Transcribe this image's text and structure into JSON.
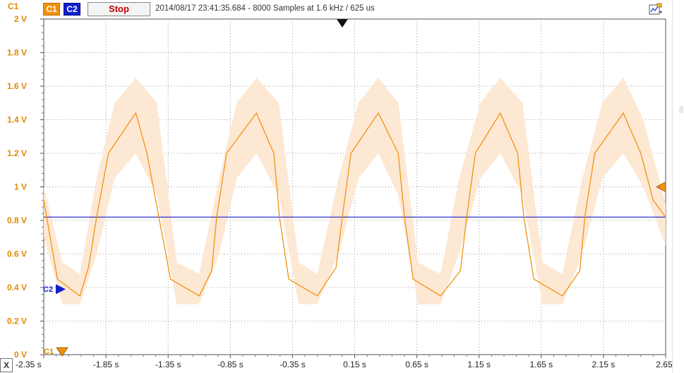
{
  "toolbar": {
    "c1_label": "C1",
    "c2_label": "C2",
    "stop_label": "Stop",
    "status": "2014/08/17 23:41:35.684 - 8000 Samples at 1.6 kHz / 625 us",
    "settings_icon": "chart-settings-icon"
  },
  "sidebar": {
    "channel_title": "C1"
  },
  "x_corner_label": "X",
  "markers": {
    "c2_label": "C2",
    "c1_label": "C1"
  },
  "colors": {
    "c1": "#f29111",
    "c1_envelope": "#fde8d4",
    "c2": "#1a1acc",
    "axis_text": "#e08a00",
    "grid": "#9a9a9a"
  },
  "chart_data": {
    "type": "line",
    "title": "",
    "xlabel": "",
    "ylabel": "",
    "xlim": [
      -2.35,
      2.65
    ],
    "ylim": [
      0,
      2
    ],
    "x_ticks": [
      "-2.35 s",
      "-1.85 s",
      "-1.35 s",
      "-0.85 s",
      "-0.35 s",
      "0.15 s",
      "0.65 s",
      "1.15 s",
      "1.65 s",
      "2.15 s",
      "2.65 s"
    ],
    "y_ticks": [
      "0 V",
      "0.2 V",
      "0.4 V",
      "0.6 V",
      "0.8 V",
      "1 V",
      "1.2 V",
      "1.4 V",
      "1.6 V",
      "1.8 V",
      "2 V"
    ],
    "grid": true,
    "series": [
      {
        "name": "C1",
        "x": [
          -2.35,
          -2.24,
          -2.06,
          -1.99,
          -1.925,
          -1.83,
          -1.61,
          -1.52,
          -1.425,
          -1.33,
          -1.1,
          -1.0,
          -0.96,
          -0.88,
          -0.64,
          -0.5,
          -0.455,
          -0.38,
          -0.15,
          0.0,
          0.05,
          0.12,
          0.34,
          0.5,
          0.55,
          0.62,
          0.84,
          1.0,
          1.05,
          1.12,
          1.32,
          1.46,
          1.51,
          1.59,
          1.82,
          1.96,
          2.0,
          2.08,
          2.31,
          2.45,
          2.5,
          2.55,
          2.65
        ],
        "values": [
          0.92,
          0.45,
          0.35,
          0.52,
          0.82,
          1.2,
          1.44,
          1.2,
          0.82,
          0.45,
          0.35,
          0.5,
          0.82,
          1.2,
          1.44,
          1.2,
          0.82,
          0.45,
          0.35,
          0.52,
          0.82,
          1.2,
          1.44,
          1.2,
          0.82,
          0.45,
          0.35,
          0.5,
          0.82,
          1.2,
          1.44,
          1.2,
          0.82,
          0.45,
          0.35,
          0.5,
          0.82,
          1.2,
          1.44,
          1.2,
          1.06,
          0.92,
          0.82
        ]
      },
      {
        "name": "C2",
        "x": [
          -2.35,
          2.65
        ],
        "values": [
          0.82,
          0.82
        ]
      }
    ],
    "c1_envelope": {
      "x": [
        -2.35,
        -2.2,
        -2.06,
        -1.925,
        -1.78,
        -1.61,
        -1.44,
        -1.28,
        -1.1,
        -0.94,
        -0.8,
        -0.64,
        -0.46,
        -0.3,
        -0.15,
        0.02,
        0.18,
        0.34,
        0.5,
        0.66,
        0.84,
        0.99,
        1.16,
        1.32,
        1.5,
        1.66,
        1.82,
        1.98,
        2.14,
        2.31,
        2.47,
        2.65
      ],
      "upper": [
        1.0,
        0.55,
        0.48,
        1.05,
        1.5,
        1.65,
        1.5,
        0.55,
        0.48,
        1.05,
        1.5,
        1.65,
        1.5,
        0.55,
        0.48,
        1.05,
        1.5,
        1.65,
        1.5,
        0.55,
        0.48,
        1.05,
        1.5,
        1.65,
        1.5,
        0.55,
        0.48,
        1.05,
        1.5,
        1.65,
        1.4,
        0.9
      ],
      "lower": [
        0.7,
        0.3,
        0.3,
        0.6,
        1.05,
        1.2,
        0.95,
        0.3,
        0.3,
        0.6,
        1.05,
        1.2,
        0.95,
        0.3,
        0.3,
        0.6,
        1.05,
        1.2,
        0.95,
        0.3,
        0.3,
        0.6,
        1.05,
        1.2,
        0.95,
        0.3,
        0.3,
        0.6,
        1.05,
        1.2,
        1.0,
        0.65
      ]
    },
    "trigger_marker_x": 0.05,
    "c1_level_marker_y": 1.0,
    "c2_offset_marker_y": 0.39,
    "c1_offset_marker_y": 0.0
  }
}
